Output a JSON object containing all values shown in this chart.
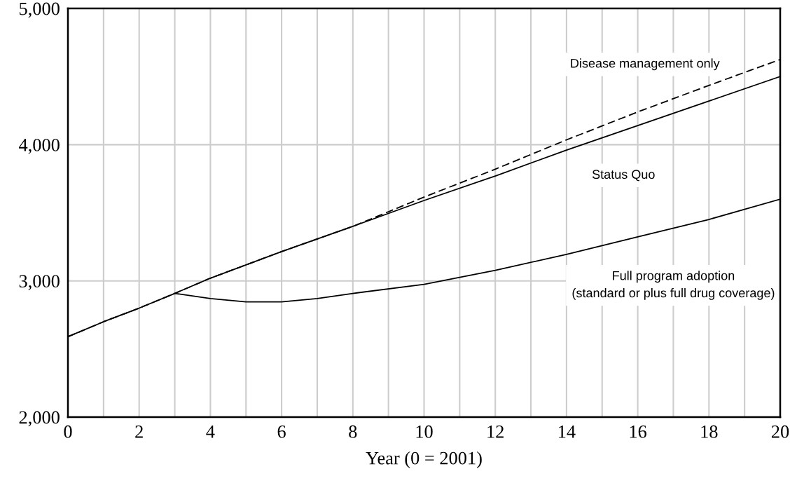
{
  "chart_data": {
    "type": "line",
    "xlabel": "Year (0 = 2001)",
    "xlim": [
      0,
      20
    ],
    "ylim": [
      2000,
      5000
    ],
    "xticks": [
      0,
      2,
      4,
      6,
      8,
      10,
      12,
      14,
      16,
      18,
      20
    ],
    "yticks": [
      {
        "value": 2000,
        "label": "2,000"
      },
      {
        "value": 3000,
        "label": "3,000"
      },
      {
        "value": 4000,
        "label": "4,000"
      },
      {
        "value": 5000,
        "label": "5,000"
      }
    ],
    "grid": true,
    "legend": false,
    "series": [
      {
        "name": "Disease management only",
        "color": "#000000",
        "line_style": "dashed",
        "x": [
          0,
          1,
          2,
          3,
          4,
          6,
          8,
          10,
          12,
          14,
          16,
          18,
          20
        ],
        "values": [
          2590,
          2700,
          2800,
          2908,
          3020,
          3215,
          3400,
          3615,
          3820,
          4035,
          4240,
          4435,
          4625
        ]
      },
      {
        "name": "Status Quo",
        "color": "#000000",
        "line_style": "solid",
        "x": [
          0,
          1,
          2,
          3,
          4,
          6,
          8,
          10,
          12,
          14,
          16,
          18,
          20
        ],
        "values": [
          2590,
          2700,
          2800,
          2908,
          3020,
          3215,
          3400,
          3590,
          3770,
          3960,
          4140,
          4320,
          4500
        ]
      },
      {
        "name": "Full program adoption\n(standard or plus full drug coverage)",
        "color": "#000000",
        "line_style": "solid",
        "x": [
          3,
          4,
          5,
          6,
          7,
          8,
          10,
          12,
          14,
          16,
          18,
          20
        ],
        "values": [
          2908,
          2870,
          2846,
          2846,
          2870,
          2908,
          2975,
          3077,
          3195,
          3323,
          3451,
          3600
        ]
      }
    ]
  }
}
